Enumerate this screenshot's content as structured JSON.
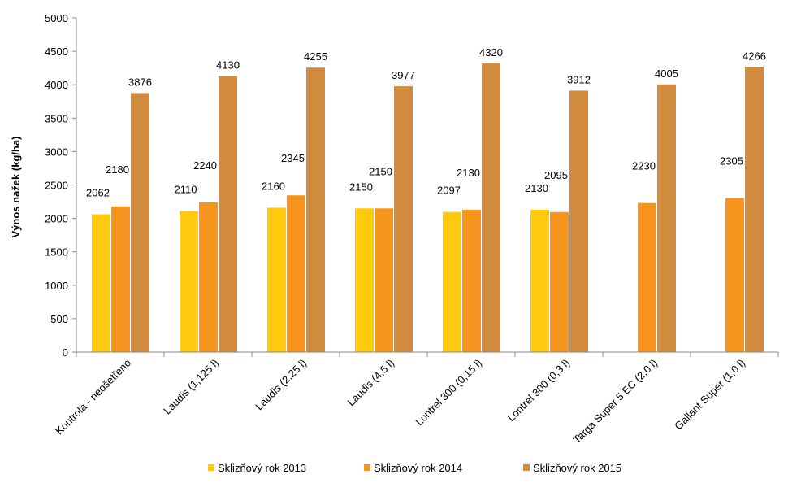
{
  "chart_data": {
    "type": "bar",
    "title": "",
    "xlabel": "",
    "ylabel": "Výnos nažek (kg/ha)",
    "ylim": [
      0,
      5000
    ],
    "yticks": [
      0,
      500,
      1000,
      1500,
      2000,
      2500,
      3000,
      3500,
      4000,
      4500,
      5000
    ],
    "grid": false,
    "legend_position": "bottom",
    "categories": [
      "Kontrola - neošetřeno",
      "Laudis (1,125 l)",
      "Laudis (2,25 l)",
      "Laudis (4,5 l)",
      "Lontrel 300 (0,15 l)",
      "Lontrel 300 (0,3 l)",
      "Targa Super 5 EC (2,0 l)",
      "Gallant Super (1,0 l)"
    ],
    "series": [
      {
        "name": "Sklizňový rok 2013",
        "color": "#ffc90e",
        "values": [
          2062,
          2110,
          2160,
          2150,
          2097,
          2130,
          null,
          null
        ]
      },
      {
        "name": "Sklizňový rok 2014",
        "color": "#f7941d",
        "values": [
          2180,
          2240,
          2345,
          2150,
          2130,
          2095,
          2230,
          2305
        ]
      },
      {
        "name": "Sklizňový rok 2015",
        "color": "#d18b3f",
        "values": [
          3876,
          4130,
          4255,
          3977,
          4320,
          3912,
          4005,
          4266
        ]
      }
    ]
  }
}
